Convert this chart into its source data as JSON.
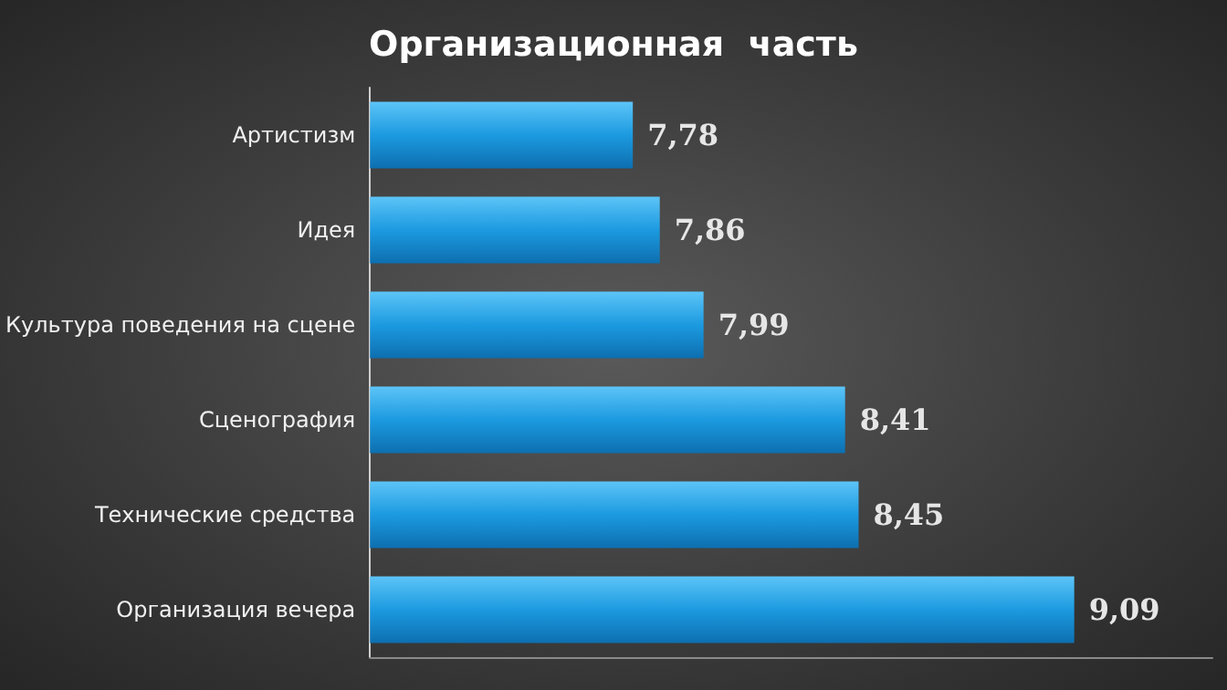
{
  "chart_data": {
    "type": "bar",
    "orientation": "horizontal",
    "title": "Организационная  часть",
    "categories": [
      "Артистизм",
      "Идея",
      "Культура поведения на сцене",
      "Сценография",
      "Технические средства",
      "Организация вечера"
    ],
    "values": [
      7.78,
      7.86,
      7.99,
      8.41,
      8.45,
      9.09
    ],
    "value_labels": [
      "7,78",
      "7,86",
      "7,99",
      "8,41",
      "8,45",
      "9,09"
    ],
    "color": "#1c9ae0",
    "xlim": [
      7,
      9.5
    ],
    "tick_labels": "y",
    "grid": false
  }
}
